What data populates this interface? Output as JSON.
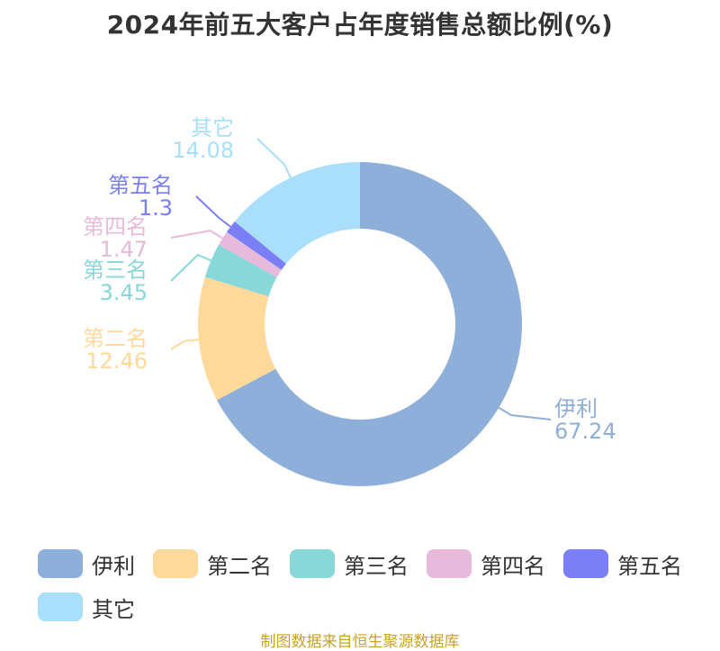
{
  "title": "2024年前五大客户占年度销售总额比例(%)",
  "source": "制图数据来自恒生聚源数据库",
  "chart_data": {
    "type": "pie",
    "title": "2024年前五大客户占年度销售总额比例(%)",
    "legend_position": "bottom",
    "series": [
      {
        "name": "伊利",
        "value": 67.24,
        "label": "67.24",
        "color": "#8fafdb"
      },
      {
        "name": "第二名",
        "value": 12.46,
        "label": "12.46",
        "color": "#ffd99a"
      },
      {
        "name": "第三名",
        "value": 3.45,
        "label": "3.45",
        "color": "#88d8da"
      },
      {
        "name": "第四名",
        "value": 1.47,
        "label": "1.47",
        "color": "#e7b9db"
      },
      {
        "name": "第五名",
        "value": 1.3,
        "label": "1.3",
        "color": "#7b7ff6"
      },
      {
        "name": "其它",
        "value": 14.08,
        "label": "14.08",
        "color": "#a9dffa"
      }
    ]
  }
}
